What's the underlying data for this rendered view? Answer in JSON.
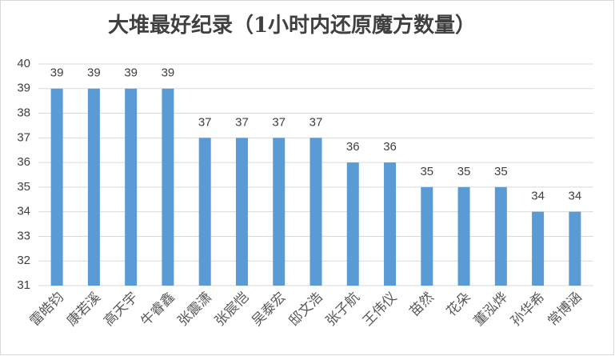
{
  "chart_data": {
    "type": "bar",
    "title": "大堆最好纪录（1小时内还原魔方数量）",
    "categories": [
      "雷皓钧",
      "康若溪",
      "高天宇",
      "牛睿鑫",
      "张震潇",
      "张宸恺",
      "吴泰宏",
      "邸文浩",
      "张子航",
      "王伟仪",
      "苗然",
      "花朵",
      "董泓烨",
      "孙华希",
      "常博涵"
    ],
    "values": [
      39,
      39,
      39,
      39,
      37,
      37,
      37,
      37,
      36,
      36,
      35,
      35,
      35,
      34,
      34
    ],
    "color": "#5b9bd5",
    "ylim": [
      31,
      40
    ],
    "yticks": [
      31,
      32,
      33,
      34,
      35,
      36,
      37,
      38,
      39,
      40
    ],
    "grid": true
  }
}
